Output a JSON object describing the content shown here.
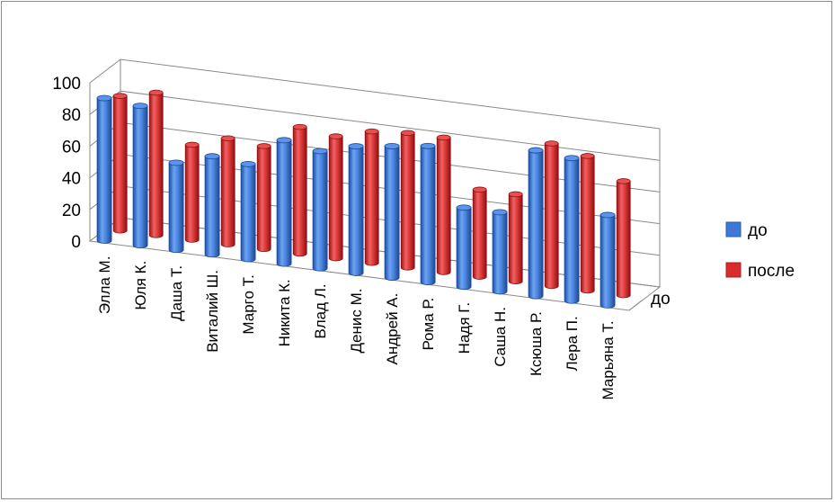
{
  "chart_data": {
    "type": "bar",
    "categories": [
      "Элла М.",
      "Юля К.",
      "Даша Т.",
      "Виталий Ш.",
      "Марго Т.",
      "Никита К.",
      "Влад Л.",
      "Денис М.",
      "Андрей А.",
      "Рома Р.",
      "Надя Г.",
      "Саша Н.",
      "Ксюша Р.",
      "Лера П.",
      "Марьяна Т."
    ],
    "series": [
      {
        "name": "до",
        "values": [
          90,
          88,
          55,
          62,
          60,
          78,
          74,
          80,
          83,
          86,
          50,
          50,
          92,
          90,
          57
        ],
        "color": "#3c78d8"
      },
      {
        "name": "после",
        "values": [
          85,
          90,
          60,
          67,
          65,
          80,
          77,
          83,
          85,
          85,
          55,
          55,
          90,
          85,
          72
        ],
        "color": "#d92b2b"
      }
    ],
    "yticks": [
      "0",
      "20",
      "40",
      "60",
      "80",
      "100"
    ],
    "ylim": [
      0,
      100
    ],
    "depth_label": "до",
    "legend_position": "right",
    "grid": true
  }
}
